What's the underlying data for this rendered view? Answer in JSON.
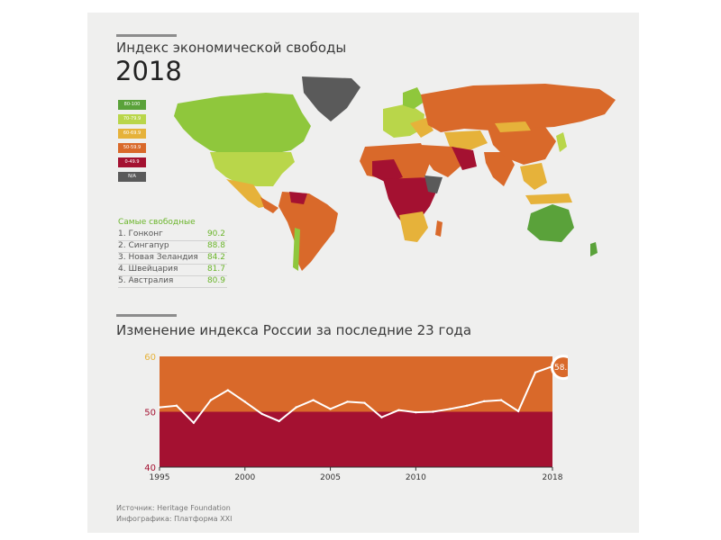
{
  "header": {
    "title": "Индекс экономической свободы",
    "year": "2018"
  },
  "legend": {
    "items": [
      {
        "label": "80-100",
        "color": "#5aa23a"
      },
      {
        "label": "70-79.9",
        "color": "#b9d64a"
      },
      {
        "label": "60-69.9",
        "color": "#e6b23a"
      },
      {
        "label": "50-59.9",
        "color": "#d9692a"
      },
      {
        "label": "0-49.9",
        "color": "#a41131"
      },
      {
        "label": "N/A",
        "color": "#5a5a5a"
      }
    ]
  },
  "top_free": {
    "title": "Самые свободные",
    "rows": [
      {
        "name": "1. Гонконг",
        "value": "90.2"
      },
      {
        "name": "2. Сингапур",
        "value": "88.8"
      },
      {
        "name": "3. Новая Зеландия",
        "value": "84.2"
      },
      {
        "name": "4. Швейцария",
        "value": "81.7"
      },
      {
        "name": "5. Австралия",
        "value": "80.9"
      }
    ]
  },
  "chart_title": "Изменение индекса России за последние 23 года",
  "chart_data": {
    "type": "line",
    "xlabel": "",
    "ylabel": "",
    "xlim": [
      1995,
      2018
    ],
    "ylim": [
      40,
      60
    ],
    "x_ticks": [
      "1995",
      "2000",
      "2005",
      "2010",
      "2018"
    ],
    "x_tick_values": [
      1995,
      2000,
      2005,
      2010,
      2018
    ],
    "y_ticks": [
      "60",
      "50",
      "40"
    ],
    "y_tick_values": [
      60,
      50,
      40
    ],
    "bands": [
      {
        "from": 40,
        "to": 50,
        "color": "#a41131"
      },
      {
        "from": 50,
        "to": 60,
        "color": "#d9692a"
      }
    ],
    "series": [
      {
        "line_color": "#ffffff",
        "x": [
          1995,
          1996,
          1997,
          1998,
          1999,
          2000,
          2001,
          2002,
          2003,
          2004,
          2005,
          2006,
          2007,
          2008,
          2009,
          2010,
          2011,
          2012,
          2013,
          2014,
          2015,
          2016,
          2017,
          2018
        ],
        "y": [
          50.8,
          51.1,
          48.0,
          52.1,
          53.9,
          51.8,
          49.6,
          48.3,
          50.8,
          52.1,
          50.5,
          51.8,
          51.6,
          49.0,
          50.3,
          49.9,
          50.0,
          50.5,
          51.1,
          51.9,
          52.1,
          50.1,
          57.1,
          58.2
        ]
      }
    ],
    "annotation": "58.2",
    "colors": {
      "tick_gold": "#e6b23a",
      "tick_red": "#a41131"
    }
  },
  "source": {
    "line1": "Источник: Heritage Foundation",
    "line2": "Инфографика: Платформа XXI"
  }
}
